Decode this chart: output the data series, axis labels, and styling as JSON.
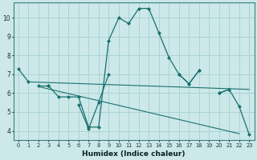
{
  "x": [
    0,
    1,
    2,
    3,
    4,
    5,
    6,
    7,
    8,
    9,
    10,
    11,
    12,
    13,
    14,
    15,
    16,
    17,
    18,
    19,
    20,
    21,
    22,
    23
  ],
  "line1": [
    7.3,
    6.6,
    null,
    6.4,
    5.8,
    5.8,
    5.8,
    4.2,
    4.2,
    8.8,
    10.0,
    9.7,
    10.5,
    10.5,
    9.2,
    7.9,
    7.0,
    6.5,
    7.2,
    null,
    6.0,
    6.2,
    5.3,
    3.8
  ],
  "line2": [
    null,
    null,
    6.4,
    6.4,
    null,
    null,
    5.4,
    4.1,
    5.5,
    7.0,
    null,
    null,
    null,
    null,
    null,
    null,
    7.0,
    6.5,
    7.2,
    null,
    6.0,
    6.2,
    null,
    null
  ],
  "flat1_start": 1,
  "flat1_end": 23,
  "flat1_y0": 6.6,
  "flat1_y1": 6.2,
  "flat2_start": 2,
  "flat2_end": 22,
  "flat2_y0": 6.35,
  "flat2_y1": 3.85,
  "bg_color": "#cce8e8",
  "grid_color": "#aad4d4",
  "line_color": "#1a7070",
  "xlabel": "Humidex (Indice chaleur)",
  "ylim": [
    3.5,
    10.8
  ],
  "xlim": [
    -0.5,
    23.5
  ],
  "yticks": [
    4,
    5,
    6,
    7,
    8,
    9,
    10
  ],
  "xticks": [
    0,
    1,
    2,
    3,
    4,
    5,
    6,
    7,
    8,
    9,
    10,
    11,
    12,
    13,
    14,
    15,
    16,
    17,
    18,
    19,
    20,
    21,
    22,
    23
  ]
}
